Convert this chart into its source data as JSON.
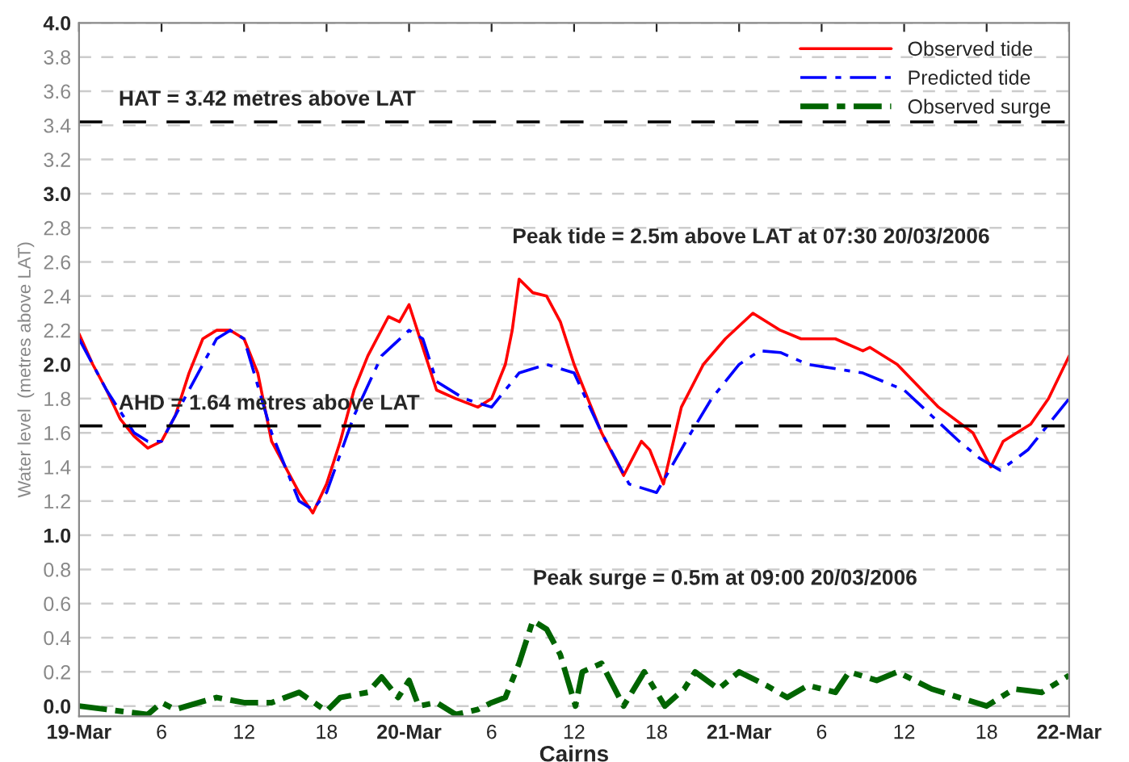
{
  "chart_data": {
    "type": "line",
    "xlabel": "Cairns",
    "ylabel": "Water level  (metres above LAT)",
    "xlim": [
      "2006-03-19T00:00",
      "2006-03-22T00:00"
    ],
    "xticks": [
      {
        "value": "2006-03-19T00:00",
        "label": "19-Mar"
      },
      {
        "value": "2006-03-19T06:00",
        "label": "6"
      },
      {
        "value": "2006-03-19T12:00",
        "label": "12"
      },
      {
        "value": "2006-03-19T18:00",
        "label": "18"
      },
      {
        "value": "2006-03-20T00:00",
        "label": "20-Mar"
      },
      {
        "value": "2006-03-20T06:00",
        "label": "6"
      },
      {
        "value": "2006-03-20T12:00",
        "label": "12"
      },
      {
        "value": "2006-03-20T18:00",
        "label": "18"
      },
      {
        "value": "2006-03-21T00:00",
        "label": "21-Mar"
      },
      {
        "value": "2006-03-21T06:00",
        "label": "6"
      },
      {
        "value": "2006-03-21T12:00",
        "label": "12"
      },
      {
        "value": "2006-03-21T18:00",
        "label": "18"
      },
      {
        "value": "2006-03-22T00:00",
        "label": "22-Mar"
      }
    ],
    "ylim": [
      -0.06,
      4
    ],
    "yticks": [
      {
        "value": 0,
        "label": "0.0"
      },
      {
        "value": 0.2,
        "label": "0.2"
      },
      {
        "value": 0.4,
        "label": "0.4"
      },
      {
        "value": 0.6,
        "label": "0.6"
      },
      {
        "value": 0.8,
        "label": "0.8"
      },
      {
        "value": 1,
        "label": "1.0"
      },
      {
        "value": 1.2,
        "label": "1.2"
      },
      {
        "value": 1.4,
        "label": "1.4"
      },
      {
        "value": 1.6,
        "label": "1.6"
      },
      {
        "value": 1.8,
        "label": "1.8"
      },
      {
        "value": 2,
        "label": "2.0"
      },
      {
        "value": 2.2,
        "label": "2.2"
      },
      {
        "value": 2.4,
        "label": "2.4"
      },
      {
        "value": 2.6,
        "label": "2.6"
      },
      {
        "value": 2.8,
        "label": "2.8"
      },
      {
        "value": 3,
        "label": "3.0"
      },
      {
        "value": 3.2,
        "label": "3.2"
      },
      {
        "value": 3.4,
        "label": "3.4"
      },
      {
        "value": 3.6,
        "label": "3.6"
      },
      {
        "value": 3.8,
        "label": "3.8"
      },
      {
        "value": 4,
        "label": "4.0"
      }
    ],
    "grid": "y",
    "legend": "top right",
    "series": [
      {
        "name": "Observed tide",
        "color": "#ff0000",
        "line_style": "solid",
        "x": [
          "2006-03-19T00:00",
          "2006-03-19T01:00",
          "2006-03-19T02:00",
          "2006-03-19T03:00",
          "2006-03-19T04:00",
          "2006-03-19T05:00",
          "2006-03-19T06:00",
          "2006-03-19T07:00",
          "2006-03-19T08:00",
          "2006-03-19T09:00",
          "2006-03-19T10:00",
          "2006-03-19T11:00",
          "2006-03-19T12:00",
          "2006-03-19T13:00",
          "2006-03-19T14:00",
          "2006-03-19T15:00",
          "2006-03-19T16:00",
          "2006-03-19T17:00",
          "2006-03-19T18:00",
          "2006-03-19T19:00",
          "2006-03-19T20:00",
          "2006-03-19T21:00",
          "2006-03-19T22:30",
          "2006-03-19T23:18",
          "2006-03-20T00:00",
          "2006-03-20T01:00",
          "2006-03-20T02:00",
          "2006-03-20T03:24",
          "2006-03-20T05:00",
          "2006-03-20T06:00",
          "2006-03-20T07:00",
          "2006-03-20T07:30",
          "2006-03-20T08:00",
          "2006-03-20T09:00",
          "2006-03-20T10:00",
          "2006-03-20T11:00",
          "2006-03-20T12:00",
          "2006-03-20T13:00",
          "2006-03-20T14:00",
          "2006-03-20T15:36",
          "2006-03-20T16:54",
          "2006-03-20T17:30",
          "2006-03-20T18:30",
          "2006-03-20T19:48",
          "2006-03-20T21:24",
          "2006-03-20T23:00",
          "2006-03-21T01:00",
          "2006-03-21T03:00",
          "2006-03-21T04:30",
          "2006-03-21T07:00",
          "2006-03-21T09:00",
          "2006-03-21T09:30",
          "2006-03-21T11:30",
          "2006-03-21T14:30",
          "2006-03-21T17:00",
          "2006-03-21T18:18",
          "2006-03-21T19:12",
          "2006-03-21T21:12",
          "2006-03-21T22:30",
          "2006-03-22T00:00"
        ],
        "values": [
          2.18,
          2.0,
          1.85,
          1.68,
          1.58,
          1.51,
          1.55,
          1.7,
          1.95,
          2.15,
          2.2,
          2.2,
          2.15,
          1.95,
          1.55,
          1.4,
          1.25,
          1.13,
          1.3,
          1.55,
          1.85,
          2.05,
          2.28,
          2.25,
          2.35,
          2.1,
          1.85,
          1.8,
          1.75,
          1.8,
          2.0,
          2.2,
          2.5,
          2.42,
          2.4,
          2.25,
          2.0,
          1.8,
          1.6,
          1.35,
          1.55,
          1.5,
          1.3,
          1.75,
          2.0,
          2.15,
          2.3,
          2.2,
          2.15,
          2.15,
          2.08,
          2.1,
          2.0,
          1.75,
          1.6,
          1.4,
          1.55,
          1.65,
          1.8,
          2.05
        ]
      },
      {
        "name": "Predicted tide",
        "color": "#0000ff",
        "line_style": "dashed",
        "x": [
          "2006-03-19T00:00",
          "2006-03-19T02:00",
          "2006-03-19T04:00",
          "2006-03-19T05:00",
          "2006-03-19T06:00",
          "2006-03-19T08:00",
          "2006-03-19T10:00",
          "2006-03-19T11:00",
          "2006-03-19T12:00",
          "2006-03-19T14:00",
          "2006-03-19T16:00",
          "2006-03-19T17:00",
          "2006-03-19T18:00",
          "2006-03-19T20:00",
          "2006-03-19T22:00",
          "2006-03-20T00:00",
          "2006-03-20T01:00",
          "2006-03-20T02:00",
          "2006-03-20T04:00",
          "2006-03-20T06:00",
          "2006-03-20T08:00",
          "2006-03-20T10:00",
          "2006-03-20T12:00",
          "2006-03-20T14:00",
          "2006-03-20T16:00",
          "2006-03-20T18:00",
          "2006-03-20T20:30",
          "2006-03-20T22:00",
          "2006-03-21T00:00",
          "2006-03-21T01:30",
          "2006-03-21T03:00",
          "2006-03-21T05:00",
          "2006-03-21T09:00",
          "2006-03-21T12:00",
          "2006-03-21T14:00",
          "2006-03-21T16:00",
          "2006-03-21T17:30",
          "2006-03-21T19:00",
          "2006-03-21T21:00",
          "2006-03-22T00:00"
        ],
        "values": [
          2.15,
          1.85,
          1.6,
          1.55,
          1.55,
          1.85,
          2.15,
          2.2,
          2.15,
          1.6,
          1.2,
          1.15,
          1.25,
          1.7,
          2.05,
          2.2,
          2.15,
          1.9,
          1.8,
          1.75,
          1.95,
          2.0,
          1.95,
          1.6,
          1.3,
          1.25,
          1.6,
          1.8,
          2.0,
          2.08,
          2.07,
          2.0,
          1.95,
          1.85,
          1.7,
          1.55,
          1.45,
          1.38,
          1.5,
          1.8
        ]
      },
      {
        "name": "Observed surge",
        "color": "#006400",
        "line_style": "dashed",
        "x": [
          "2006-03-19T00:00",
          "2006-03-19T02:00",
          "2006-03-19T05:00",
          "2006-03-19T06:00",
          "2006-03-19T07:00",
          "2006-03-19T10:00",
          "2006-03-19T12:00",
          "2006-03-19T14:00",
          "2006-03-19T16:00",
          "2006-03-19T18:00",
          "2006-03-19T19:00",
          "2006-03-19T21:00",
          "2006-03-19T22:00",
          "2006-03-19T23:12",
          "2006-03-20T00:00",
          "2006-03-20T00:42",
          "2006-03-20T02:00",
          "2006-03-20T03:24",
          "2006-03-20T05:00",
          "2006-03-20T06:00",
          "2006-03-20T07:00",
          "2006-03-20T08:00",
          "2006-03-20T09:00",
          "2006-03-20T10:00",
          "2006-03-20T11:00",
          "2006-03-20T12:06",
          "2006-03-20T12:36",
          "2006-03-20T14:00",
          "2006-03-20T15:36",
          "2006-03-20T17:06",
          "2006-03-20T18:36",
          "2006-03-20T20:00",
          "2006-03-20T20:48",
          "2006-03-20T22:30",
          "2006-03-21T00:00",
          "2006-03-21T02:00",
          "2006-03-21T03:30",
          "2006-03-21T05:00",
          "2006-03-21T07:00",
          "2006-03-21T08:00",
          "2006-03-21T10:00",
          "2006-03-21T11:30",
          "2006-03-21T14:00",
          "2006-03-21T16:00",
          "2006-03-21T18:00",
          "2006-03-21T19:00",
          "2006-03-21T20:00",
          "2006-03-21T22:00",
          "2006-03-22T00:00"
        ],
        "values": [
          0.0,
          -0.02,
          -0.05,
          0.02,
          -0.02,
          0.05,
          0.02,
          0.02,
          0.08,
          -0.03,
          0.05,
          0.08,
          0.17,
          0.05,
          0.15,
          0.0,
          0.02,
          -0.05,
          -0.02,
          0.02,
          0.05,
          0.25,
          0.5,
          0.45,
          0.3,
          0.0,
          0.2,
          0.25,
          0.0,
          0.2,
          0.0,
          0.1,
          0.2,
          0.1,
          0.2,
          0.12,
          0.05,
          0.12,
          0.08,
          0.2,
          0.15,
          0.2,
          0.1,
          0.05,
          0.0,
          0.05,
          0.1,
          0.08,
          0.18
        ]
      }
    ],
    "ref_lines": [
      {
        "axis": "y",
        "value": 3.42,
        "label": "HAT = 3.42 metres above LAT",
        "color": "#000000",
        "line_style": "dashed"
      },
      {
        "axis": "y",
        "value": 1.64,
        "label": "AHD = 1.64 metres above LAT",
        "color": "#000000",
        "line_style": "dashed"
      }
    ],
    "annotations": [
      {
        "text": "Peak tide = 2.5m above LAT at 07:30 20/03/2006",
        "x": "2006-03-20T07:30",
        "y": 2.5
      },
      {
        "text": "Peak surge = 0.5m at 09:00 20/03/2006",
        "x": "2006-03-20T09:00",
        "y": 0.5
      }
    ]
  }
}
